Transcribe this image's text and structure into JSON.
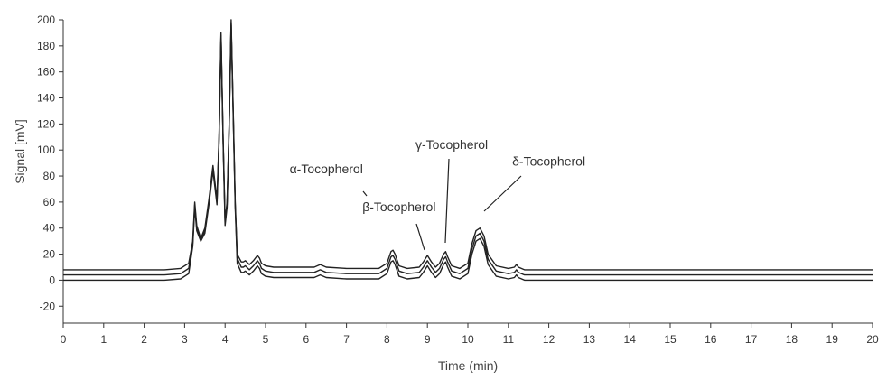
{
  "chart_data": {
    "type": "line",
    "title": "",
    "xlabel": "Time (min)",
    "ylabel": "Signal [mV]",
    "xlim": [
      0,
      20
    ],
    "ylim": [
      -33,
      200
    ],
    "x_ticks": [
      0,
      1,
      2,
      3,
      4,
      5,
      6,
      7,
      8,
      9,
      10,
      11,
      12,
      13,
      14,
      15,
      16,
      17,
      18,
      19,
      20
    ],
    "y_ticks": [
      -20,
      0,
      20,
      40,
      60,
      80,
      100,
      120,
      140,
      160,
      180,
      200
    ],
    "grid": false,
    "legend": "none",
    "line_color": "#222222",
    "series": [
      {
        "x": [
          0,
          2.5,
          2.9,
          3.1,
          3.2,
          3.25,
          3.3,
          3.4,
          3.5,
          3.6,
          3.7,
          3.8,
          3.85,
          3.9,
          3.95,
          4.0,
          4.05,
          4.1,
          4.15,
          4.2,
          4.25,
          4.3,
          4.4,
          4.45,
          4.5,
          4.6,
          4.7,
          4.8,
          4.85,
          4.9,
          5.0,
          5.2,
          5.6,
          6.2,
          6.35,
          6.5,
          7.0,
          7.8,
          8.0,
          8.1,
          8.15,
          8.2,
          8.3,
          8.5,
          8.8,
          8.9,
          9.0,
          9.1,
          9.2,
          9.3,
          9.4,
          9.45,
          9.5,
          9.6,
          9.8,
          10.0,
          10.1,
          10.2,
          10.3,
          10.4,
          10.5,
          10.7,
          11.0,
          11.15,
          11.2,
          11.25,
          11.4,
          12,
          20
        ],
        "y": [
          8,
          8,
          9,
          13,
          30,
          60,
          42,
          32,
          40,
          62,
          88,
          62,
          110,
          190,
          110,
          46,
          60,
          120,
          200,
          130,
          60,
          20,
          14,
          14,
          15,
          12,
          15,
          19,
          17,
          13,
          11,
          10,
          10,
          10,
          12,
          10,
          9,
          9,
          13,
          22,
          23,
          20,
          11,
          9,
          10,
          14,
          19,
          14,
          10,
          13,
          20,
          22,
          18,
          11,
          9,
          13,
          28,
          38,
          40,
          34,
          20,
          11,
          9,
          10,
          12,
          10,
          8,
          8,
          8
        ]
      },
      {
        "x": [
          0,
          2.5,
          2.9,
          3.1,
          3.2,
          3.25,
          3.3,
          3.4,
          3.5,
          3.6,
          3.7,
          3.8,
          3.85,
          3.9,
          3.95,
          4.0,
          4.05,
          4.1,
          4.15,
          4.2,
          4.25,
          4.3,
          4.4,
          4.45,
          4.5,
          4.6,
          4.7,
          4.8,
          4.85,
          4.9,
          5.0,
          5.2,
          5.6,
          6.2,
          6.35,
          6.5,
          7.0,
          7.8,
          8.0,
          8.1,
          8.15,
          8.2,
          8.3,
          8.5,
          8.8,
          8.9,
          9.0,
          9.1,
          9.2,
          9.3,
          9.4,
          9.45,
          9.5,
          9.6,
          9.8,
          10.0,
          10.1,
          10.2,
          10.3,
          10.4,
          10.5,
          10.7,
          11.0,
          11.15,
          11.2,
          11.25,
          11.4,
          12,
          20
        ],
        "y": [
          4,
          4,
          5,
          9,
          28,
          58,
          40,
          31,
          38,
          60,
          86,
          60,
          108,
          188,
          108,
          44,
          58,
          118,
          198,
          128,
          58,
          17,
          10,
          10,
          11,
          8,
          11,
          15,
          13,
          9,
          7,
          6,
          6,
          6,
          8,
          6,
          5,
          5,
          9,
          18,
          19,
          16,
          7,
          5,
          6,
          10,
          15,
          10,
          6,
          9,
          16,
          18,
          14,
          7,
          5,
          9,
          24,
          34,
          36,
          30,
          16,
          7,
          5,
          6,
          8,
          6,
          4,
          4,
          4
        ]
      },
      {
        "x": [
          0,
          2.5,
          2.9,
          3.1,
          3.2,
          3.25,
          3.3,
          3.4,
          3.5,
          3.6,
          3.7,
          3.8,
          3.85,
          3.9,
          3.95,
          4.0,
          4.05,
          4.1,
          4.15,
          4.2,
          4.25,
          4.3,
          4.4,
          4.45,
          4.5,
          4.6,
          4.7,
          4.8,
          4.85,
          4.9,
          5.0,
          5.2,
          5.6,
          6.2,
          6.35,
          6.5,
          7.0,
          7.8,
          8.0,
          8.1,
          8.15,
          8.2,
          8.3,
          8.5,
          8.8,
          8.9,
          9.0,
          9.1,
          9.2,
          9.3,
          9.4,
          9.45,
          9.5,
          9.6,
          9.8,
          10.0,
          10.1,
          10.2,
          10.3,
          10.4,
          10.5,
          10.7,
          11.0,
          11.15,
          11.2,
          11.25,
          11.4,
          12,
          20
        ],
        "y": [
          0,
          0,
          1,
          5,
          26,
          56,
          38,
          30,
          36,
          58,
          84,
          58,
          106,
          186,
          106,
          42,
          56,
          116,
          196,
          126,
          56,
          13,
          6,
          6,
          7,
          4,
          7,
          11,
          9,
          5,
          3,
          2,
          2,
          2,
          4,
          2,
          1,
          1,
          5,
          14,
          15,
          12,
          3,
          1,
          2,
          6,
          11,
          6,
          2,
          5,
          12,
          14,
          10,
          3,
          1,
          5,
          20,
          30,
          32,
          26,
          12,
          3,
          1,
          2,
          4,
          2,
          0,
          0,
          0
        ]
      }
    ],
    "annotations": [
      {
        "text": "α-Tocopherol",
        "x": 6.5,
        "y": 82
      },
      {
        "text": "β-Tocopherol",
        "x": 8.3,
        "y": 53
      },
      {
        "text": "γ-Tocopherol",
        "x": 9.6,
        "y": 101
      },
      {
        "text": "δ-Tocopherol",
        "x": 12.0,
        "y": 88
      }
    ]
  }
}
